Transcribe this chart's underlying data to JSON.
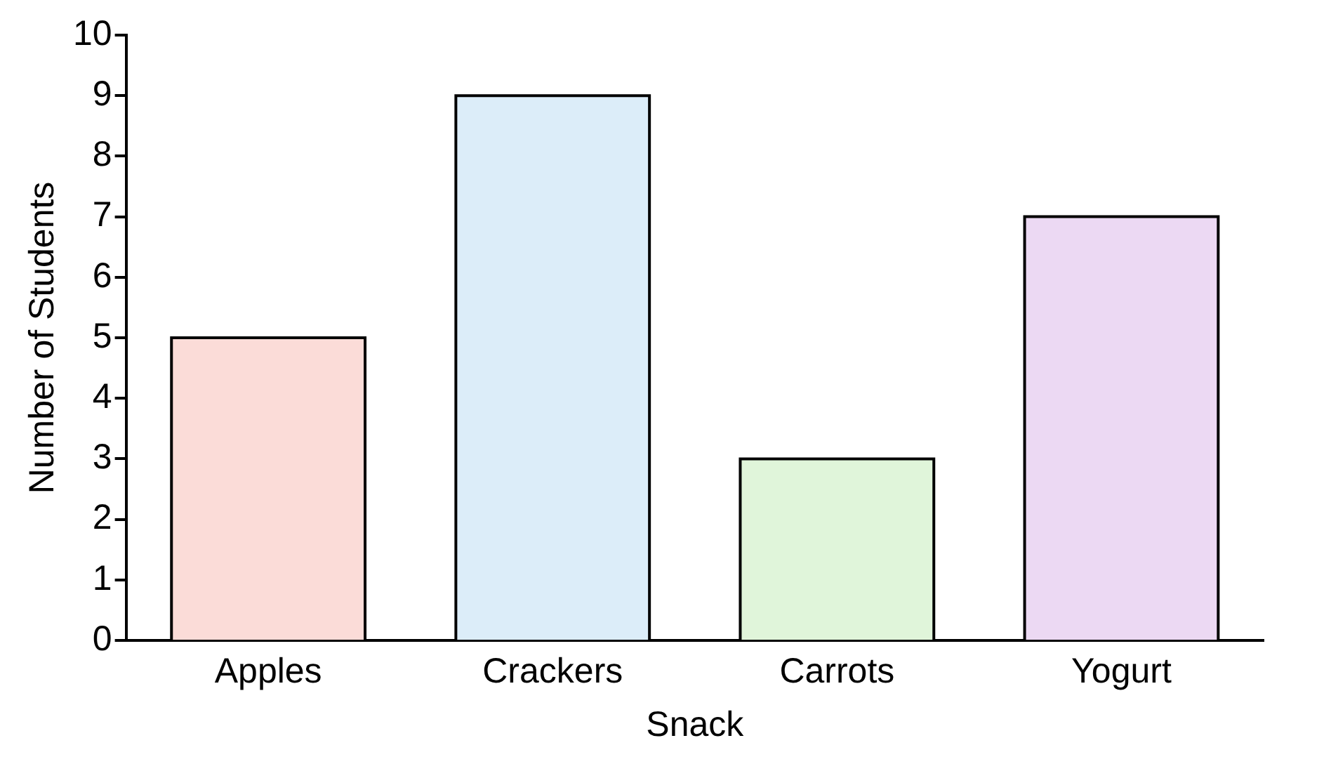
{
  "chart_data": {
    "type": "bar",
    "xlabel": "Snack",
    "ylabel": "Number of Students",
    "categories": [
      "Apples",
      "Crackers",
      "Carrots",
      "Yogurt"
    ],
    "values": [
      5,
      9,
      3,
      7
    ],
    "colors": [
      "#fbdcd8",
      "#dcedf9",
      "#e0f5da",
      "#ecd9f3"
    ],
    "ylim": [
      0,
      10
    ],
    "yticks": [
      0,
      1,
      2,
      3,
      4,
      5,
      6,
      7,
      8,
      9,
      10
    ],
    "grid": false
  }
}
